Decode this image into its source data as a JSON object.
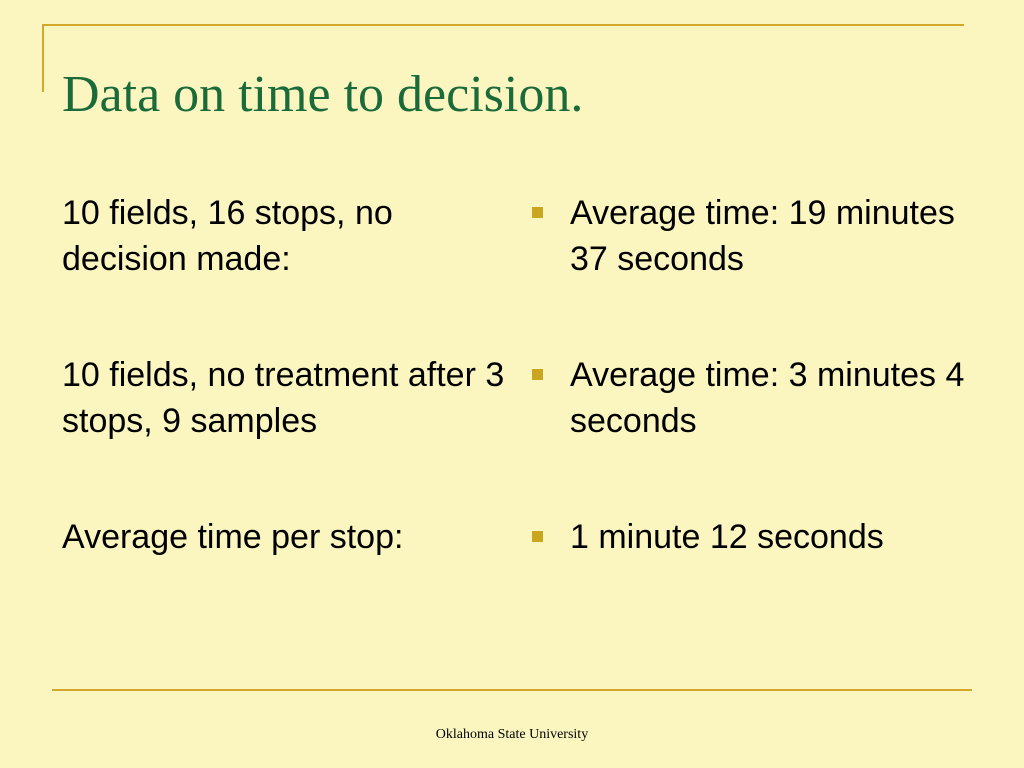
{
  "title": "Data on time to decision.",
  "left_items": [
    "10 fields, 16 stops, no decision made:",
    "10 fields, no treatment after 3 stops, 9 samples",
    "Average time per stop:"
  ],
  "right_items": [
    "Average time: 19 minutes 37 seconds",
    "Average time:  3 minutes 4 seconds",
    "1 minute 12 seconds"
  ],
  "footer": "Oklahoma State University",
  "colors": {
    "background": "#fbf6c0",
    "title": "#1b6b3a",
    "accent": "#d4a82a",
    "bullet": "#c9a520"
  },
  "icons": {
    "bullet": "square-bullet-icon"
  }
}
